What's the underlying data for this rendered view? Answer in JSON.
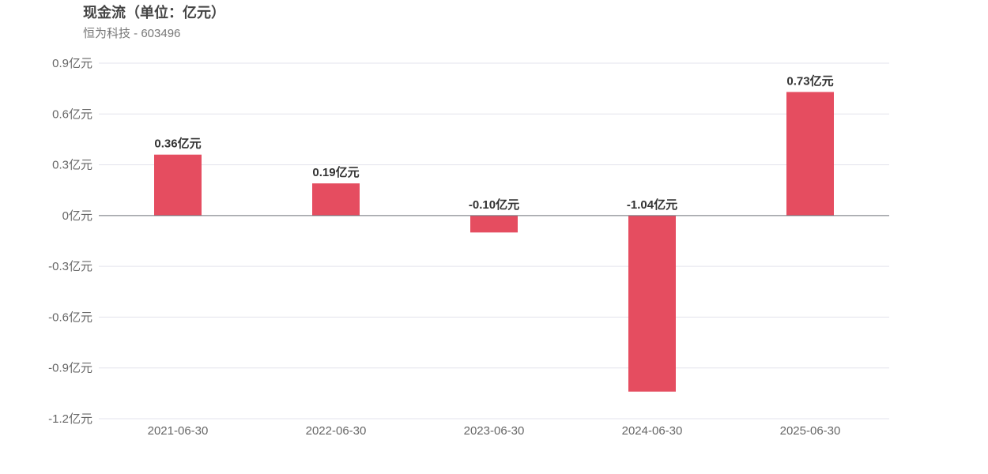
{
  "title": "现金流（单位：亿元）",
  "subtitle": "恒为科技 - 603496",
  "colors": {
    "bar": "#e54d60",
    "grid": "#e3e3ec",
    "zero_line": "#6e7079"
  },
  "chart_data": {
    "type": "bar",
    "categories": [
      "2021-06-30",
      "2022-06-30",
      "2023-06-30",
      "2024-06-30",
      "2025-06-30"
    ],
    "values": [
      0.36,
      0.19,
      -0.1,
      -1.04,
      0.73
    ],
    "data_labels": [
      "0.36亿元",
      "0.19亿元",
      "-0.10亿元",
      "-1.04亿元",
      "0.73亿元"
    ],
    "ylim": [
      -1.2,
      0.9
    ],
    "yticks": [
      0.9,
      0.6,
      0.3,
      0,
      -0.3,
      -0.6,
      -0.9,
      -1.2
    ],
    "ytick_labels": [
      "0.9亿元",
      "0.6亿元",
      "0.3亿元",
      "0亿元",
      "-0.3亿元",
      "-0.6亿元",
      "-0.9亿元",
      "-1.2亿元"
    ],
    "xlabel": "",
    "ylabel": "",
    "grid": true
  }
}
